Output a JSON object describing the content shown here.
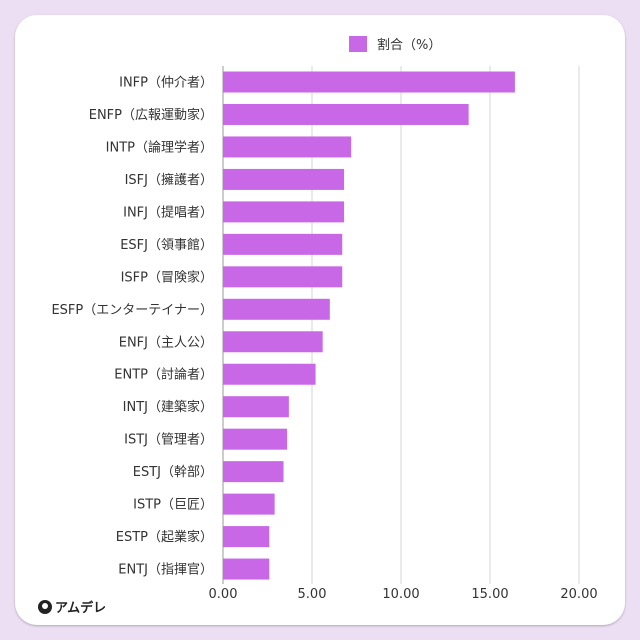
{
  "brand": {
    "name": "アムデレ"
  },
  "chart_data": {
    "type": "bar",
    "orientation": "horizontal",
    "title": "",
    "legend": [
      "割合（%）"
    ],
    "legend_position": "top-center",
    "categories": [
      "INFP（仲介者）",
      "ENFP（広報運動家）",
      "INTP（論理学者）",
      "ISFJ（擁護者）",
      "INFJ（提唱者）",
      "ESFJ（領事館）",
      "ISFP（冒険家）",
      "ESFP（エンターテイナー）",
      "ENFJ（主人公）",
      "ENTP（討論者）",
      "INTJ（建築家）",
      "ISTJ（管理者）",
      "ESTJ（幹部）",
      "ISTP（巨匠）",
      "ESTP（起業家）",
      "ENTJ（指揮官）"
    ],
    "series": [
      {
        "name": "割合（%）",
        "color": "#c968e6",
        "values": [
          16.4,
          13.8,
          7.2,
          6.8,
          6.8,
          6.7,
          6.7,
          6.0,
          5.6,
          5.2,
          3.7,
          3.6,
          3.4,
          2.9,
          2.6,
          2.6
        ]
      }
    ],
    "xlim": [
      0,
      20
    ],
    "xticks": [
      "0.00",
      "5.00",
      "10.00",
      "15.00",
      "20.00"
    ],
    "xlabel": "",
    "ylabel": "",
    "grid": true
  }
}
